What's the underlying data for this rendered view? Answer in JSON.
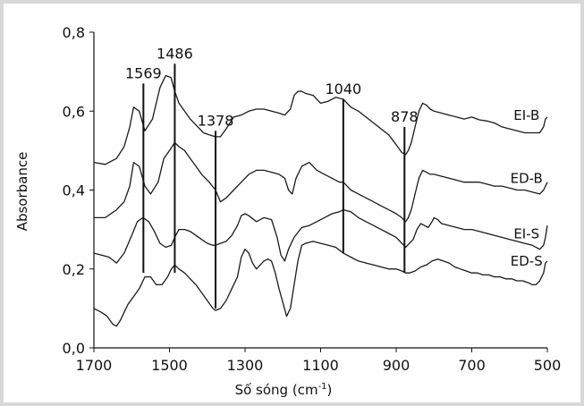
{
  "chart_data": {
    "type": "line",
    "xlabel": "Số sóng (cm",
    "xlabel_sup": "-1",
    "xlabel_close": ")",
    "ylabel": "Absorbance",
    "xlim": [
      1700,
      500
    ],
    "ylim": [
      0,
      0.8
    ],
    "x_ticks": [
      {
        "value": 1700,
        "label": "1700"
      },
      {
        "value": 1500,
        "label": "1500"
      },
      {
        "value": 1300,
        "label": "1300"
      },
      {
        "value": 1100,
        "label": "1100"
      },
      {
        "value": 900,
        "label": "900"
      },
      {
        "value": 700,
        "label": "700"
      },
      {
        "value": 500,
        "label": "500"
      }
    ],
    "y_ticks": [
      {
        "value": 0.0,
        "label": "0,0"
      },
      {
        "value": 0.2,
        "label": "0,2"
      },
      {
        "value": 0.4,
        "label": "0,4"
      },
      {
        "value": 0.6,
        "label": "0,6"
      },
      {
        "value": 0.8,
        "label": "0,8"
      }
    ],
    "annotations": [
      {
        "label": "1569",
        "x": 1569,
        "y_top": 0.67,
        "y_bottom": 0.19
      },
      {
        "label": "1486",
        "x": 1486,
        "y_top": 0.72,
        "y_bottom": 0.19
      },
      {
        "label": "1378",
        "x": 1378,
        "y_top": 0.55,
        "y_bottom": 0.1
      },
      {
        "label": "1040",
        "x": 1040,
        "y_top": 0.63,
        "y_bottom": 0.24
      },
      {
        "label": "878",
        "x": 878,
        "y_top": 0.56,
        "y_bottom": 0.19
      }
    ],
    "series": [
      {
        "name": "EI-B",
        "x": [
          1700,
          1670,
          1640,
          1620,
          1605,
          1595,
          1580,
          1565,
          1545,
          1525,
          1510,
          1496,
          1486,
          1475,
          1460,
          1445,
          1425,
          1410,
          1395,
          1378,
          1365,
          1350,
          1330,
          1310,
          1290,
          1270,
          1250,
          1230,
          1210,
          1195,
          1180,
          1170,
          1160,
          1150,
          1140,
          1120,
          1100,
          1080,
          1060,
          1040,
          1020,
          1000,
          980,
          960,
          940,
          920,
          900,
          885,
          875,
          868,
          860,
          850,
          840,
          830,
          820,
          810,
          800,
          780,
          760,
          740,
          720,
          700,
          680,
          660,
          640,
          620,
          600,
          580,
          560,
          540,
          520,
          510,
          505,
          500
        ],
        "y": [
          0.47,
          0.465,
          0.48,
          0.51,
          0.56,
          0.61,
          0.6,
          0.55,
          0.58,
          0.66,
          0.69,
          0.685,
          0.65,
          0.62,
          0.6,
          0.58,
          0.56,
          0.545,
          0.54,
          0.535,
          0.535,
          0.555,
          0.585,
          0.59,
          0.6,
          0.605,
          0.605,
          0.6,
          0.595,
          0.59,
          0.605,
          0.64,
          0.65,
          0.65,
          0.645,
          0.64,
          0.62,
          0.625,
          0.635,
          0.63,
          0.61,
          0.6,
          0.585,
          0.57,
          0.555,
          0.54,
          0.515,
          0.495,
          0.49,
          0.5,
          0.52,
          0.56,
          0.6,
          0.62,
          0.615,
          0.605,
          0.6,
          0.595,
          0.59,
          0.585,
          0.58,
          0.585,
          0.578,
          0.575,
          0.57,
          0.56,
          0.555,
          0.55,
          0.545,
          0.545,
          0.545,
          0.56,
          0.58,
          0.585
        ]
      },
      {
        "name": "ED-B",
        "x": [
          1700,
          1670,
          1640,
          1620,
          1605,
          1595,
          1580,
          1565,
          1550,
          1530,
          1515,
          1500,
          1486,
          1475,
          1460,
          1445,
          1430,
          1415,
          1395,
          1378,
          1365,
          1350,
          1330,
          1310,
          1290,
          1270,
          1250,
          1230,
          1210,
          1195,
          1185,
          1175,
          1165,
          1150,
          1130,
          1110,
          1090,
          1070,
          1050,
          1040,
          1020,
          1000,
          980,
          960,
          940,
          920,
          900,
          885,
          875,
          868,
          860,
          850,
          840,
          830,
          820,
          810,
          800,
          780,
          760,
          740,
          720,
          700,
          680,
          660,
          640,
          620,
          600,
          580,
          560,
          540,
          520,
          510,
          505,
          500
        ],
        "y": [
          0.33,
          0.33,
          0.35,
          0.37,
          0.41,
          0.47,
          0.46,
          0.41,
          0.39,
          0.42,
          0.48,
          0.5,
          0.52,
          0.51,
          0.5,
          0.48,
          0.46,
          0.44,
          0.42,
          0.4,
          0.37,
          0.38,
          0.4,
          0.42,
          0.44,
          0.45,
          0.45,
          0.445,
          0.44,
          0.43,
          0.4,
          0.39,
          0.43,
          0.46,
          0.47,
          0.45,
          0.44,
          0.43,
          0.42,
          0.42,
          0.4,
          0.39,
          0.38,
          0.37,
          0.36,
          0.35,
          0.34,
          0.33,
          0.32,
          0.33,
          0.35,
          0.39,
          0.43,
          0.45,
          0.445,
          0.44,
          0.44,
          0.435,
          0.43,
          0.425,
          0.42,
          0.42,
          0.42,
          0.415,
          0.41,
          0.41,
          0.405,
          0.4,
          0.4,
          0.395,
          0.39,
          0.4,
          0.41,
          0.42
        ]
      },
      {
        "name": "EI-S",
        "x": [
          1700,
          1680,
          1660,
          1640,
          1620,
          1600,
          1585,
          1570,
          1555,
          1540,
          1525,
          1510,
          1495,
          1486,
          1475,
          1460,
          1445,
          1430,
          1415,
          1400,
          1385,
          1378,
          1365,
          1350,
          1335,
          1320,
          1310,
          1300,
          1290,
          1270,
          1250,
          1230,
          1215,
          1205,
          1195,
          1185,
          1170,
          1150,
          1130,
          1110,
          1090,
          1070,
          1050,
          1040,
          1020,
          1000,
          980,
          960,
          940,
          920,
          900,
          885,
          875,
          865,
          855,
          845,
          835,
          825,
          815,
          805,
          800,
          790,
          780,
          760,
          740,
          720,
          700,
          680,
          660,
          640,
          620,
          600,
          580,
          560,
          540,
          520,
          510,
          505,
          500
        ],
        "y": [
          0.24,
          0.235,
          0.23,
          0.215,
          0.24,
          0.285,
          0.32,
          0.33,
          0.32,
          0.295,
          0.265,
          0.255,
          0.26,
          0.28,
          0.3,
          0.3,
          0.295,
          0.285,
          0.275,
          0.265,
          0.26,
          0.26,
          0.265,
          0.27,
          0.285,
          0.31,
          0.335,
          0.34,
          0.335,
          0.32,
          0.33,
          0.325,
          0.28,
          0.235,
          0.22,
          0.25,
          0.28,
          0.305,
          0.31,
          0.32,
          0.33,
          0.34,
          0.345,
          0.35,
          0.345,
          0.33,
          0.32,
          0.31,
          0.3,
          0.29,
          0.28,
          0.265,
          0.255,
          0.265,
          0.275,
          0.3,
          0.315,
          0.31,
          0.305,
          0.32,
          0.33,
          0.325,
          0.315,
          0.31,
          0.305,
          0.3,
          0.3,
          0.295,
          0.29,
          0.285,
          0.28,
          0.275,
          0.27,
          0.265,
          0.26,
          0.25,
          0.26,
          0.28,
          0.31
        ]
      },
      {
        "name": "ED-S",
        "x": [
          1700,
          1680,
          1665,
          1650,
          1640,
          1630,
          1620,
          1610,
          1595,
          1580,
          1565,
          1550,
          1535,
          1520,
          1505,
          1495,
          1486,
          1475,
          1460,
          1445,
          1430,
          1415,
          1400,
          1385,
          1378,
          1365,
          1350,
          1335,
          1320,
          1310,
          1300,
          1290,
          1280,
          1270,
          1260,
          1250,
          1240,
          1230,
          1220,
          1210,
          1200,
          1190,
          1180,
          1170,
          1160,
          1150,
          1140,
          1120,
          1100,
          1080,
          1060,
          1040,
          1020,
          1000,
          980,
          960,
          940,
          920,
          900,
          885,
          875,
          865,
          850,
          835,
          820,
          805,
          790,
          775,
          760,
          745,
          730,
          715,
          700,
          685,
          670,
          655,
          640,
          625,
          610,
          595,
          580,
          565,
          550,
          540,
          530,
          520,
          510,
          505,
          500
        ],
        "y": [
          0.1,
          0.09,
          0.08,
          0.06,
          0.055,
          0.07,
          0.09,
          0.11,
          0.13,
          0.15,
          0.18,
          0.18,
          0.16,
          0.16,
          0.18,
          0.2,
          0.21,
          0.2,
          0.19,
          0.175,
          0.16,
          0.14,
          0.12,
          0.1,
          0.095,
          0.1,
          0.12,
          0.15,
          0.18,
          0.23,
          0.25,
          0.24,
          0.215,
          0.2,
          0.21,
          0.22,
          0.225,
          0.22,
          0.19,
          0.15,
          0.115,
          0.08,
          0.1,
          0.16,
          0.22,
          0.26,
          0.265,
          0.27,
          0.265,
          0.26,
          0.255,
          0.24,
          0.23,
          0.22,
          0.215,
          0.21,
          0.205,
          0.2,
          0.2,
          0.195,
          0.19,
          0.19,
          0.195,
          0.205,
          0.21,
          0.22,
          0.225,
          0.22,
          0.215,
          0.205,
          0.2,
          0.195,
          0.19,
          0.19,
          0.185,
          0.185,
          0.18,
          0.18,
          0.175,
          0.175,
          0.17,
          0.17,
          0.165,
          0.16,
          0.16,
          0.17,
          0.19,
          0.215,
          0.22
        ]
      }
    ]
  }
}
